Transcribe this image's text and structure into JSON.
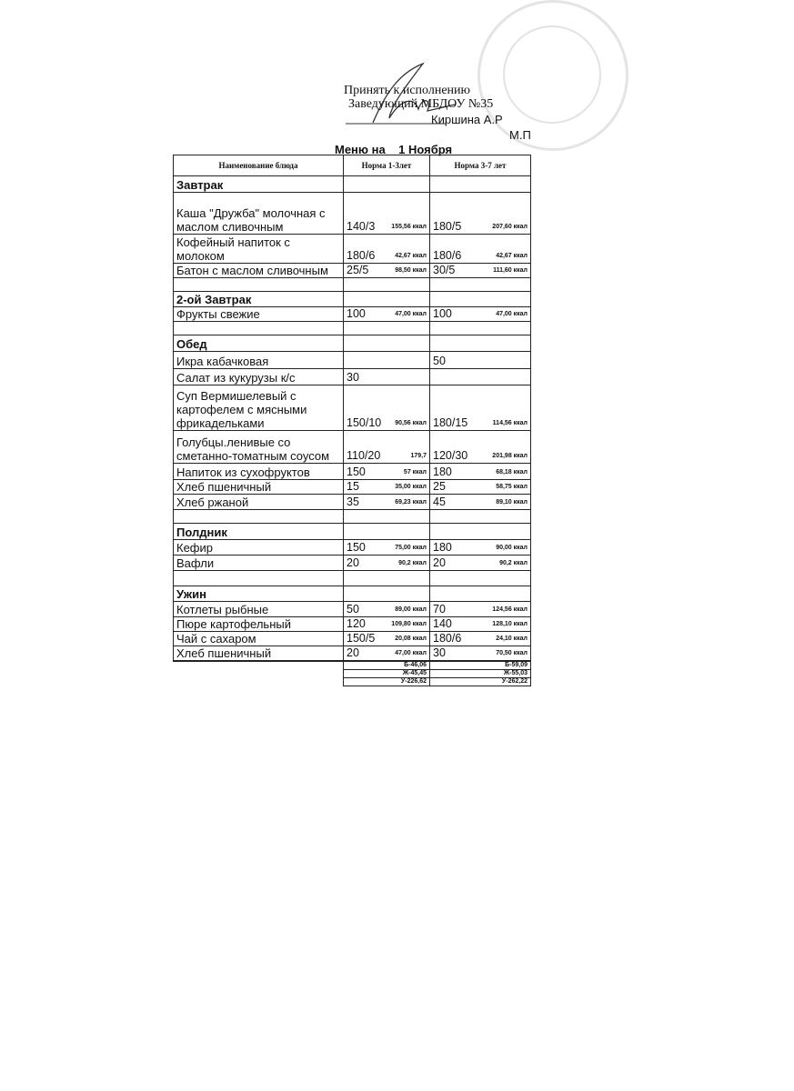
{
  "approval": {
    "line1": "Принять к исполнению",
    "line2": "Заведующий МБДОУ №35",
    "signer": "Киршина А.Р",
    "seal_label": "М.П"
  },
  "title": {
    "prefix": "Меню на",
    "date": "1 Ноября"
  },
  "table": {
    "headers": [
      "Наименование блюда",
      "Норма 1-3лет",
      "Норма 3-7 лет"
    ],
    "rows": [
      {
        "type": "section",
        "name": "Завтрак"
      },
      {
        "name": "Каша \"Дружба\" молочная с маслом сливочным",
        "a1": "140/3",
        "k1": "155,56 ккал",
        "a2": "180/5",
        "k2": "207,60 ккал"
      },
      {
        "name": "Кофейный напиток с молоком",
        "a1": "180/6",
        "k1": "42,67 ккал",
        "a2": "180/6",
        "k2": "42,67 ккал"
      },
      {
        "name": "Батон с маслом сливочным",
        "a1": "25/5",
        "k1": "98,50 ккал",
        "a2": "30/5",
        "k2": "111,60 ккал"
      },
      {
        "type": "empty"
      },
      {
        "type": "section",
        "name": "2-ой Завтрак"
      },
      {
        "name": "Фрукты свежие",
        "a1": "100",
        "k1": "47,00 ккал",
        "a2": "100",
        "k2": "47,00 ккал"
      },
      {
        "type": "empty"
      },
      {
        "type": "section",
        "name": "Обед"
      },
      {
        "name": "Икра кабачковая",
        "a1": "",
        "k1": "",
        "a2": "50",
        "k2": ""
      },
      {
        "name": "Салат из кукурузы к/с",
        "a1": "30",
        "k1": "",
        "a2": "",
        "k2": ""
      },
      {
        "name": "Суп Вермишелевый с картофелем с мясными фрикадельками",
        "a1": "150/10",
        "k1": "90,56 ккал",
        "a2": "180/15",
        "k2": "114,56 ккал"
      },
      {
        "name": "Голубцы.ленивые со сметанно-томатным соусом",
        "a1": "110/20",
        "k1": "179,7",
        "a2": "120/30",
        "k2": "201,98 ккал"
      },
      {
        "name": "Напиток из сухофруктов",
        "a1": "150",
        "k1": "57 ккал",
        "a2": "180",
        "k2": "68,18 ккал"
      },
      {
        "name": "Хлеб пшеничный",
        "a1": "15",
        "k1": "35,00 ккал",
        "a2": "25",
        "k2": "58,75 ккал"
      },
      {
        "name": "Хлеб ржаной",
        "a1": "35",
        "k1": "69,23 ккал",
        "a2": "45",
        "k2": "89,10 ккал"
      },
      {
        "type": "empty"
      },
      {
        "type": "section",
        "name": "Полдник"
      },
      {
        "name": "Кефир",
        "a1": "150",
        "k1": "75,00 ккал",
        "a2": "180",
        "k2": "90,00 ккал"
      },
      {
        "name": "Вафли",
        "a1": "20",
        "k1": "90,2 ккал",
        "a2": "20",
        "k2": "90,2 ккал"
      },
      {
        "type": "empty"
      },
      {
        "type": "section",
        "name": "Ужин"
      },
      {
        "name": "Котлеты рыбные",
        "a1": "50",
        "k1": "89,00 ккал",
        "a2": "70",
        "k2": "124,56 ккал"
      },
      {
        "name": "Пюре картофельный",
        "a1": "120",
        "k1": "109,80 ккал",
        "a2": "140",
        "k2": "128,10 ккал"
      },
      {
        "name": "Чай с сахаром",
        "a1": "150/5",
        "k1": "20,08 ккал",
        "a2": "180/6",
        "k2": "24,10 ккал"
      },
      {
        "name": "Хлеб пшеничный",
        "a1": "20",
        "k1": "47,00 ккал",
        "a2": "30",
        "k2": "70,50 ккал"
      },
      {
        "type": "empty"
      }
    ],
    "totals": [
      [
        "Б-46,06",
        "Б-59,09"
      ],
      [
        "Ж-45,45",
        "Ж-55,03"
      ],
      [
        "У-226,62",
        "У-262,22"
      ]
    ]
  }
}
